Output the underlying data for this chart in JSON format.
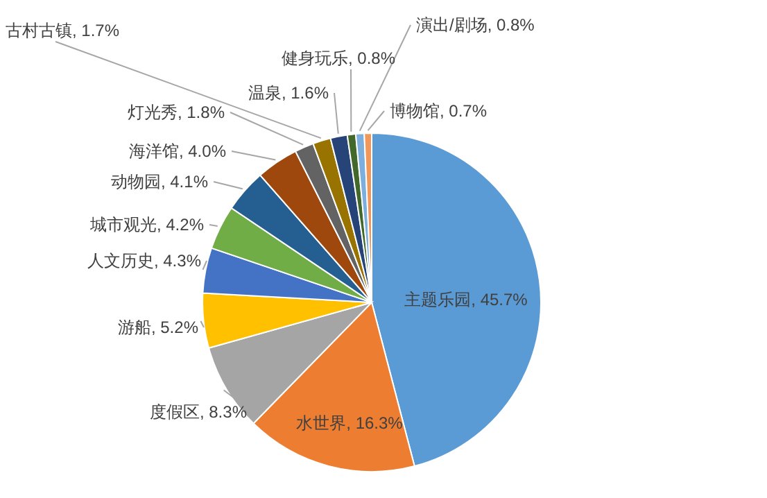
{
  "chart_data": {
    "type": "pie",
    "categories": [
      "主题乐园",
      "水世界",
      "度假区",
      "游船",
      "人文历史",
      "城市观光",
      "动物园",
      "海洋馆",
      "灯光秀",
      "古村古镇",
      "温泉",
      "健身玩乐",
      "演出/剧场",
      "博物馆"
    ],
    "values": [
      45.7,
      16.3,
      8.3,
      5.2,
      4.3,
      4.2,
      4.1,
      4.0,
      1.8,
      1.7,
      1.6,
      0.8,
      0.8,
      0.7
    ],
    "value_labels": [
      "45.7%",
      "16.3%",
      "8.3%",
      "5.2%",
      "4.3%",
      "4.2%",
      "4.1%",
      "4.0%",
      "1.8%",
      "1.7%",
      "1.6%",
      "0.8%",
      "0.8%",
      "0.7%"
    ],
    "colors": [
      "#5b9bd5",
      "#ed7d31",
      "#a5a5a5",
      "#ffc000",
      "#4472c4",
      "#70ad47",
      "#255e91",
      "#9e480e",
      "#636363",
      "#997300",
      "#264478",
      "#43682b",
      "#7cafdd",
      "#f1975a"
    ]
  }
}
